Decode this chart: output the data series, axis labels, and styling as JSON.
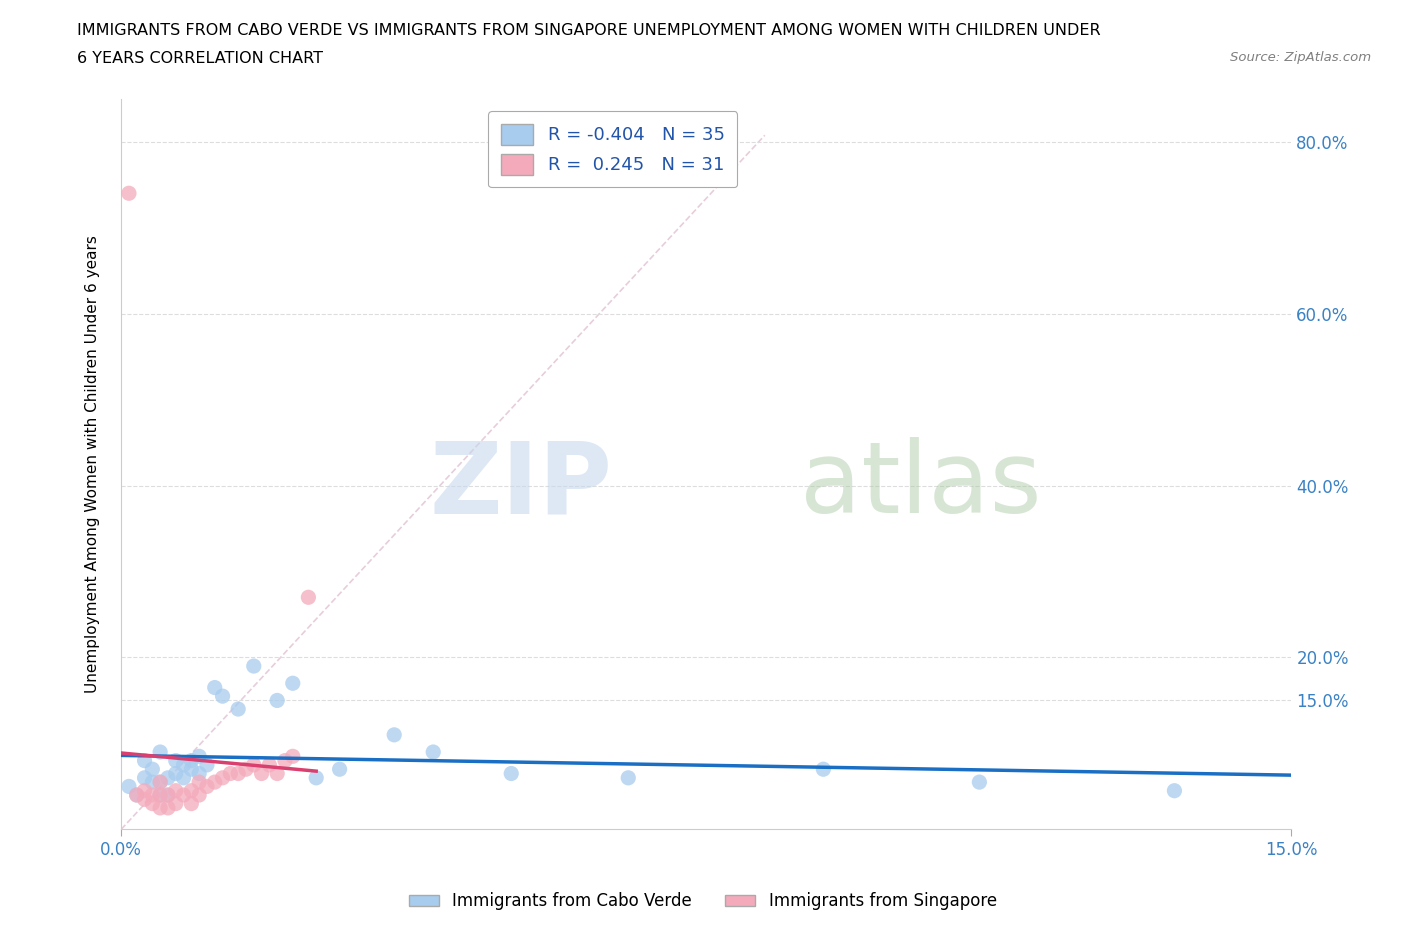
{
  "title_line1": "IMMIGRANTS FROM CABO VERDE VS IMMIGRANTS FROM SINGAPORE UNEMPLOYMENT AMONG WOMEN WITH CHILDREN UNDER",
  "title_line2": "6 YEARS CORRELATION CHART",
  "source": "Source: ZipAtlas.com",
  "ylabel_label": "Unemployment Among Women with Children Under 6 years",
  "legend_cabo": "Immigrants from Cabo Verde",
  "legend_sing": "Immigrants from Singapore",
  "R_cabo": -0.404,
  "N_cabo": 35,
  "R_sing": 0.245,
  "N_sing": 31,
  "cabo_color": "#A8CCEE",
  "sing_color": "#F4AABB",
  "trend_cabo_color": "#1A6FC4",
  "trend_sing_color": "#D94070",
  "ref_line_color": "#DDAACC",
  "watermark_zip": "ZIP",
  "watermark_atlas": "atlas",
  "cabo_x": [
    0.001,
    0.002,
    0.003,
    0.003,
    0.004,
    0.004,
    0.005,
    0.005,
    0.005,
    0.006,
    0.006,
    0.007,
    0.007,
    0.008,
    0.008,
    0.009,
    0.009,
    0.01,
    0.01,
    0.011,
    0.012,
    0.013,
    0.015,
    0.017,
    0.02,
    0.022,
    0.025,
    0.028,
    0.035,
    0.04,
    0.05,
    0.065,
    0.09,
    0.11,
    0.135
  ],
  "cabo_y": [
    0.05,
    0.04,
    0.06,
    0.08,
    0.055,
    0.07,
    0.04,
    0.055,
    0.09,
    0.04,
    0.06,
    0.065,
    0.08,
    0.06,
    0.075,
    0.07,
    0.08,
    0.065,
    0.085,
    0.075,
    0.165,
    0.155,
    0.14,
    0.19,
    0.15,
    0.17,
    0.06,
    0.07,
    0.11,
    0.09,
    0.065,
    0.06,
    0.07,
    0.055,
    0.045
  ],
  "sing_x": [
    0.001,
    0.002,
    0.003,
    0.003,
    0.004,
    0.004,
    0.005,
    0.005,
    0.005,
    0.006,
    0.006,
    0.007,
    0.007,
    0.008,
    0.009,
    0.009,
    0.01,
    0.01,
    0.011,
    0.012,
    0.013,
    0.014,
    0.015,
    0.016,
    0.017,
    0.018,
    0.019,
    0.02,
    0.021,
    0.022,
    0.024
  ],
  "sing_y": [
    0.74,
    0.04,
    0.035,
    0.045,
    0.03,
    0.04,
    0.025,
    0.04,
    0.055,
    0.025,
    0.04,
    0.03,
    0.045,
    0.04,
    0.03,
    0.045,
    0.04,
    0.055,
    0.05,
    0.055,
    0.06,
    0.065,
    0.065,
    0.07,
    0.075,
    0.065,
    0.075,
    0.065,
    0.08,
    0.085,
    0.27
  ],
  "xmin": 0.0,
  "xmax": 0.15,
  "ymin": 0.0,
  "ymax": 0.85,
  "ytick_vals": [
    0.15,
    0.2,
    0.4,
    0.6,
    0.8
  ],
  "ytick_labels": [
    "15.0%",
    "20.0%",
    "40.0%",
    "60.0%",
    "80.0%"
  ]
}
